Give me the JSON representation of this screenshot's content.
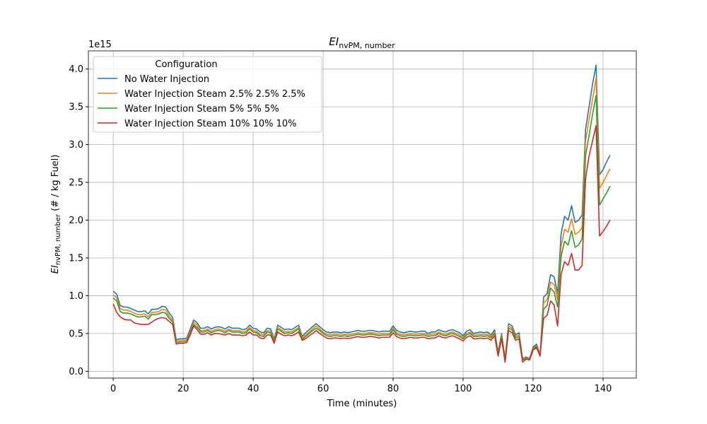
{
  "chart_data": {
    "type": "line",
    "title": "EI",
    "title_sub": "nvPM, number",
    "xlabel": "Time (minutes)",
    "ylabel": "EI",
    "ylabel_sub": "nvPM, number",
    "ylabel_unit": " (# / kg Fuel)",
    "y_offset_label": "1e15",
    "legend_title": "Configuration",
    "legend_loc": "upper left",
    "grid": true,
    "xlim": [
      -7.1,
      149.5
    ],
    "ylim": [
      -0.09,
      4.24
    ],
    "xticks": [
      0,
      20,
      40,
      60,
      80,
      100,
      120,
      140
    ],
    "yticks": [
      {
        "value": 0,
        "label": "0.0"
      },
      0.5,
      {
        "value": 1,
        "label": "1.0"
      },
      1.5,
      {
        "value": 2,
        "label": "2.0"
      },
      2.5,
      {
        "value": 3,
        "label": "3.0"
      },
      3.5,
      {
        "value": 4,
        "label": "4.0"
      }
    ],
    "x": [
      0,
      1,
      2,
      3,
      4,
      5,
      6,
      7,
      8,
      9,
      10,
      11,
      12,
      13,
      14,
      15,
      16,
      17,
      18,
      19,
      20,
      21,
      22,
      23,
      24,
      25,
      26,
      27,
      28,
      29,
      30,
      31,
      32,
      33,
      34,
      35,
      36,
      37,
      38,
      39,
      40,
      41,
      42,
      43,
      44,
      45,
      46,
      47,
      48,
      49,
      50,
      51,
      52,
      53,
      54,
      55,
      56,
      57,
      58,
      59,
      60,
      61,
      62,
      63,
      64,
      65,
      66,
      67,
      68,
      69,
      70,
      71,
      72,
      73,
      74,
      75,
      76,
      77,
      78,
      79,
      80,
      81,
      82,
      83,
      84,
      85,
      86,
      87,
      88,
      89,
      90,
      91,
      92,
      93,
      94,
      95,
      96,
      97,
      98,
      99,
      100,
      101,
      102,
      103,
      104,
      105,
      106,
      107,
      108,
      109,
      110,
      111,
      112,
      113,
      114,
      115,
      116,
      117,
      118,
      119,
      120,
      121,
      122,
      123,
      124,
      125,
      126,
      127,
      128,
      129,
      130,
      131,
      132,
      133,
      134,
      135,
      136,
      137,
      138,
      139,
      140,
      141,
      142
    ],
    "series": [
      {
        "name": "No Water Injection",
        "color": "#1f77b4",
        "values": [
          1.06,
          1.02,
          0.87,
          0.85,
          0.85,
          0.83,
          0.81,
          0.79,
          0.79,
          0.8,
          0.76,
          0.82,
          0.82,
          0.83,
          0.86,
          0.85,
          0.77,
          0.71,
          0.42,
          0.43,
          0.43,
          0.44,
          0.56,
          0.68,
          0.64,
          0.57,
          0.57,
          0.59,
          0.56,
          0.58,
          0.59,
          0.58,
          0.56,
          0.59,
          0.57,
          0.57,
          0.57,
          0.55,
          0.56,
          0.61,
          0.57,
          0.56,
          0.52,
          0.51,
          0.57,
          0.56,
          0.43,
          0.61,
          0.58,
          0.55,
          0.56,
          0.55,
          0.58,
          0.61,
          0.46,
          0.51,
          0.55,
          0.59,
          0.63,
          0.59,
          0.55,
          0.52,
          0.51,
          0.52,
          0.52,
          0.51,
          0.52,
          0.51,
          0.52,
          0.53,
          0.54,
          0.53,
          0.53,
          0.54,
          0.54,
          0.53,
          0.52,
          0.53,
          0.53,
          0.53,
          0.6,
          0.54,
          0.52,
          0.51,
          0.52,
          0.53,
          0.52,
          0.52,
          0.53,
          0.53,
          0.5,
          0.52,
          0.52,
          0.55,
          0.53,
          0.52,
          0.54,
          0.55,
          0.53,
          0.51,
          0.47,
          0.53,
          0.55,
          0.5,
          0.51,
          0.52,
          0.51,
          0.52,
          0.48,
          0.55,
          0.25,
          0.5,
          0.17,
          0.63,
          0.6,
          0.48,
          0.51,
          0.17,
          0.19,
          0.17,
          0.32,
          0.36,
          0.22,
          0.98,
          1.03,
          1.28,
          1.25,
          1.03,
          1.82,
          2.05,
          2.0,
          2.19,
          1.97,
          2.0,
          2.07,
          3.2,
          3.5,
          3.8,
          4.05,
          2.6,
          2.67,
          2.77,
          2.86
        ]
      },
      {
        "name": "Water Injection Steam 2.5% 2.5% 2.5%",
        "color": "#ff7f0e",
        "values": [
          1.01,
          0.97,
          0.83,
          0.81,
          0.81,
          0.79,
          0.77,
          0.75,
          0.75,
          0.76,
          0.72,
          0.78,
          0.78,
          0.79,
          0.82,
          0.81,
          0.73,
          0.67,
          0.4,
          0.41,
          0.41,
          0.42,
          0.53,
          0.65,
          0.61,
          0.54,
          0.54,
          0.56,
          0.53,
          0.55,
          0.56,
          0.55,
          0.53,
          0.56,
          0.54,
          0.54,
          0.54,
          0.52,
          0.53,
          0.58,
          0.54,
          0.53,
          0.49,
          0.48,
          0.54,
          0.53,
          0.41,
          0.58,
          0.55,
          0.52,
          0.53,
          0.52,
          0.55,
          0.58,
          0.44,
          0.48,
          0.52,
          0.56,
          0.6,
          0.56,
          0.52,
          0.49,
          0.48,
          0.49,
          0.49,
          0.48,
          0.49,
          0.48,
          0.49,
          0.5,
          0.51,
          0.5,
          0.5,
          0.51,
          0.51,
          0.5,
          0.49,
          0.5,
          0.5,
          0.5,
          0.57,
          0.51,
          0.49,
          0.48,
          0.49,
          0.5,
          0.49,
          0.49,
          0.5,
          0.5,
          0.48,
          0.49,
          0.49,
          0.52,
          0.5,
          0.49,
          0.51,
          0.52,
          0.5,
          0.48,
          0.45,
          0.5,
          0.52,
          0.48,
          0.48,
          0.49,
          0.48,
          0.49,
          0.46,
          0.52,
          0.24,
          0.48,
          0.16,
          0.6,
          0.57,
          0.46,
          0.48,
          0.16,
          0.18,
          0.16,
          0.3,
          0.34,
          0.21,
          0.9,
          0.95,
          1.18,
          1.15,
          0.95,
          1.65,
          1.88,
          1.84,
          2.02,
          1.81,
          1.84,
          1.9,
          3.05,
          3.33,
          3.6,
          3.88,
          2.42,
          2.5,
          2.59,
          2.68
        ]
      },
      {
        "name": "Water Injection Steam 5% 5% 5%",
        "color": "#2ca02c",
        "values": [
          0.97,
          0.93,
          0.79,
          0.77,
          0.77,
          0.76,
          0.74,
          0.72,
          0.72,
          0.73,
          0.69,
          0.75,
          0.75,
          0.76,
          0.78,
          0.77,
          0.7,
          0.65,
          0.38,
          0.39,
          0.39,
          0.4,
          0.51,
          0.62,
          0.58,
          0.52,
          0.52,
          0.54,
          0.51,
          0.53,
          0.54,
          0.53,
          0.51,
          0.54,
          0.52,
          0.52,
          0.52,
          0.5,
          0.51,
          0.56,
          0.52,
          0.51,
          0.47,
          0.46,
          0.52,
          0.51,
          0.39,
          0.56,
          0.53,
          0.5,
          0.51,
          0.5,
          0.53,
          0.56,
          0.42,
          0.46,
          0.5,
          0.54,
          0.57,
          0.54,
          0.5,
          0.47,
          0.46,
          0.47,
          0.47,
          0.46,
          0.47,
          0.46,
          0.47,
          0.48,
          0.49,
          0.48,
          0.48,
          0.49,
          0.49,
          0.48,
          0.47,
          0.48,
          0.48,
          0.48,
          0.55,
          0.49,
          0.47,
          0.46,
          0.47,
          0.48,
          0.47,
          0.47,
          0.48,
          0.48,
          0.46,
          0.47,
          0.47,
          0.5,
          0.48,
          0.47,
          0.49,
          0.5,
          0.48,
          0.46,
          0.43,
          0.48,
          0.5,
          0.46,
          0.46,
          0.47,
          0.46,
          0.47,
          0.44,
          0.5,
          0.23,
          0.46,
          0.15,
          0.57,
          0.55,
          0.44,
          0.46,
          0.15,
          0.17,
          0.15,
          0.29,
          0.33,
          0.2,
          0.82,
          0.87,
          1.1,
          1.05,
          0.85,
          1.52,
          1.72,
          1.67,
          1.86,
          1.64,
          1.67,
          1.75,
          2.85,
          3.12,
          3.4,
          3.65,
          2.2,
          2.28,
          2.36,
          2.45
        ]
      },
      {
        "name": "Water Injection Steam 10% 10% 10%",
        "color": "#d62728",
        "values": [
          0.89,
          0.78,
          0.72,
          0.69,
          0.68,
          0.68,
          0.64,
          0.63,
          0.62,
          0.62,
          0.62,
          0.65,
          0.68,
          0.7,
          0.71,
          0.7,
          0.66,
          0.62,
          0.36,
          0.37,
          0.37,
          0.38,
          0.48,
          0.6,
          0.55,
          0.49,
          0.49,
          0.51,
          0.48,
          0.5,
          0.5,
          0.49,
          0.48,
          0.5,
          0.48,
          0.48,
          0.48,
          0.47,
          0.48,
          0.52,
          0.48,
          0.48,
          0.44,
          0.43,
          0.48,
          0.48,
          0.37,
          0.52,
          0.49,
          0.47,
          0.48,
          0.47,
          0.49,
          0.52,
          0.41,
          0.43,
          0.47,
          0.5,
          0.54,
          0.5,
          0.47,
          0.44,
          0.43,
          0.44,
          0.44,
          0.43,
          0.44,
          0.43,
          0.44,
          0.45,
          0.46,
          0.45,
          0.45,
          0.46,
          0.46,
          0.45,
          0.44,
          0.45,
          0.45,
          0.45,
          0.51,
          0.46,
          0.44,
          0.43,
          0.44,
          0.45,
          0.44,
          0.44,
          0.45,
          0.45,
          0.43,
          0.44,
          0.44,
          0.47,
          0.45,
          0.44,
          0.46,
          0.47,
          0.45,
          0.43,
          0.4,
          0.45,
          0.47,
          0.43,
          0.43,
          0.44,
          0.43,
          0.44,
          0.41,
          0.47,
          0.2,
          0.43,
          0.12,
          0.54,
          0.51,
          0.41,
          0.43,
          0.12,
          0.16,
          0.15,
          0.28,
          0.31,
          0.2,
          0.7,
          0.74,
          0.93,
          0.88,
          0.6,
          1.28,
          1.45,
          1.4,
          1.56,
          1.34,
          1.34,
          1.4,
          2.55,
          2.85,
          3.05,
          3.25,
          1.79,
          1.85,
          1.92,
          2.0
        ]
      }
    ]
  }
}
